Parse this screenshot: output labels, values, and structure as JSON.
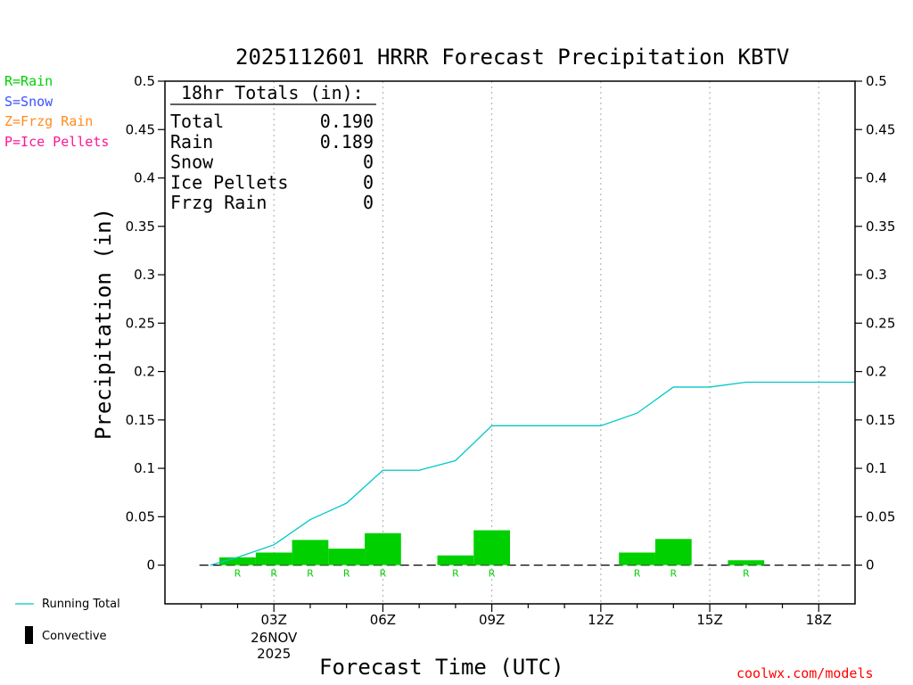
{
  "title": "2025112601 HRRR Forecast Precipitation KBTV",
  "type_legend": [
    {
      "text": "R=Rain",
      "color": "#00d000"
    },
    {
      "text": "S=Snow",
      "color": "#3c50ff"
    },
    {
      "text": "Z=Frzg Rain",
      "color": "#ff8c1e"
    },
    {
      "text": "P=Ice Pellets",
      "color": "#ff1496"
    }
  ],
  "series_legend": {
    "running_total": "Running Total",
    "convective": "Convective"
  },
  "totals": {
    "header": "18hr Totals (in):",
    "rows": [
      {
        "label": "Total",
        "value": "0.190"
      },
      {
        "label": "Rain",
        "value": "0.189"
      },
      {
        "label": "Snow",
        "value": "0"
      },
      {
        "label": "Ice Pellets",
        "value": "0"
      },
      {
        "label": "Frzg Rain",
        "value": "0"
      }
    ]
  },
  "credit": "coolwx.com/models",
  "colors": {
    "bar": "#00d000",
    "running_total": "#00c8c8",
    "credit": "#ff0000"
  },
  "chart_data": {
    "type": "bar",
    "xlabel": "Forecast Time (UTC)",
    "ylabel": "Precipitation (in)",
    "ylim": [
      -0.04,
      0.5
    ],
    "yticks": [
      0,
      0.05,
      0.1,
      0.15,
      0.2,
      0.25,
      0.3,
      0.35,
      0.4,
      0.45,
      0.5
    ],
    "ytick_labels": [
      "0",
      "0.05",
      "0.1",
      "0.15",
      "0.2",
      "0.25",
      "0.3",
      "0.35",
      "0.4",
      "0.45",
      "0.5"
    ],
    "xlim": [
      0,
      19
    ],
    "xticks": [
      {
        "hour": 3,
        "label": "03Z",
        "sublabel": [
          "26NOV",
          "2025"
        ]
      },
      {
        "hour": 6,
        "label": "06Z"
      },
      {
        "hour": 9,
        "label": "09Z"
      },
      {
        "hour": 12,
        "label": "12Z"
      },
      {
        "hour": 15,
        "label": "15Z"
      },
      {
        "hour": 18,
        "label": "18Z"
      }
    ],
    "grid": "vertical dotted at labeled hours",
    "hours": [
      1,
      2,
      3,
      4,
      5,
      6,
      7,
      8,
      9,
      10,
      11,
      12,
      13,
      14,
      15,
      16,
      17,
      18
    ],
    "hourly_precip": [
      0,
      0.008,
      0.013,
      0.026,
      0.017,
      0.033,
      0,
      0.01,
      0.036,
      0,
      0,
      0,
      0.013,
      0.027,
      0,
      0.005,
      0,
      0
    ],
    "precip_type": [
      "",
      "R",
      "R",
      "R",
      "R",
      "R",
      "",
      "R",
      "R",
      "",
      "",
      "",
      "R",
      "R",
      "",
      "R",
      "",
      ""
    ],
    "running_total": [
      0,
      0.008,
      0.021,
      0.047,
      0.064,
      0.098,
      0.098,
      0.108,
      0.144,
      0.144,
      0.144,
      0.144,
      0.157,
      0.184,
      0.184,
      0.189,
      0.189,
      0.189
    ],
    "convective": [
      0,
      0,
      0,
      0,
      0,
      0,
      0,
      0,
      0,
      0,
      0,
      0,
      0,
      0,
      0,
      0,
      0,
      0
    ]
  }
}
